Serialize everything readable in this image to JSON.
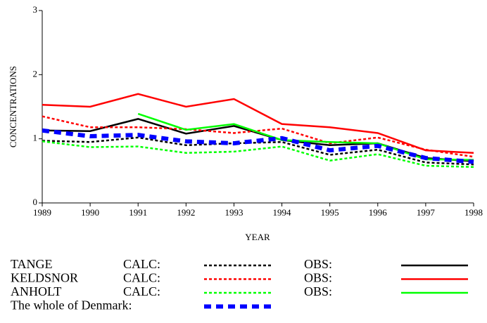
{
  "chart_data": {
    "type": "line",
    "xlabel": "YEAR",
    "ylabel": "CONCENTRATIONS",
    "x": [
      1989,
      1990,
      1991,
      1992,
      1993,
      1994,
      1995,
      1996,
      1997,
      1998
    ],
    "xlim": [
      1989,
      1998
    ],
    "xticks": [
      1989,
      1990,
      1991,
      1992,
      1993,
      1994,
      1995,
      1996,
      1997,
      1998
    ],
    "ylim": [
      0,
      3
    ],
    "yticks": [
      0,
      1,
      2,
      3
    ],
    "series": [
      {
        "station": "TANGE",
        "name": "CALC:",
        "color": "#000000",
        "style": "dotted",
        "values": [
          0.97,
          0.95,
          1.02,
          0.9,
          0.93,
          0.95,
          0.75,
          0.83,
          0.63,
          0.6
        ]
      },
      {
        "name": "OBS:",
        "color": "#000000",
        "style": "solid",
        "values": [
          1.13,
          1.12,
          1.31,
          1.08,
          1.2,
          0.98,
          0.9,
          0.93,
          0.7,
          0.65
        ]
      },
      {
        "station": "KELDSNOR",
        "name": "CALC:",
        "color": "#ff0000",
        "style": "dotted",
        "values": [
          1.35,
          1.18,
          1.18,
          1.15,
          1.09,
          1.16,
          0.93,
          1.02,
          0.83,
          0.72
        ]
      },
      {
        "name": "OBS:",
        "color": "#ff0000",
        "style": "solid",
        "values": [
          1.53,
          1.5,
          1.7,
          1.5,
          1.62,
          1.23,
          1.18,
          1.09,
          0.82,
          0.78
        ]
      },
      {
        "station": "ANHOLT",
        "name": "CALC:",
        "color": "#00ff00",
        "style": "dotted",
        "values": [
          0.96,
          0.87,
          0.88,
          0.78,
          0.8,
          0.88,
          0.66,
          0.76,
          0.58,
          0.56
        ]
      },
      {
        "name": "OBS:",
        "color": "#00ff00",
        "style": "solid",
        "values": [
          null,
          null,
          1.39,
          1.14,
          1.23,
          0.98,
          0.95,
          0.93,
          0.68,
          0.67
        ]
      },
      {
        "name": "The whole of Denmark:",
        "color": "#0000ff",
        "style": "dashed",
        "values": [
          1.13,
          1.04,
          1.06,
          0.96,
          0.93,
          1.01,
          0.82,
          0.89,
          0.7,
          0.64
        ]
      }
    ]
  }
}
